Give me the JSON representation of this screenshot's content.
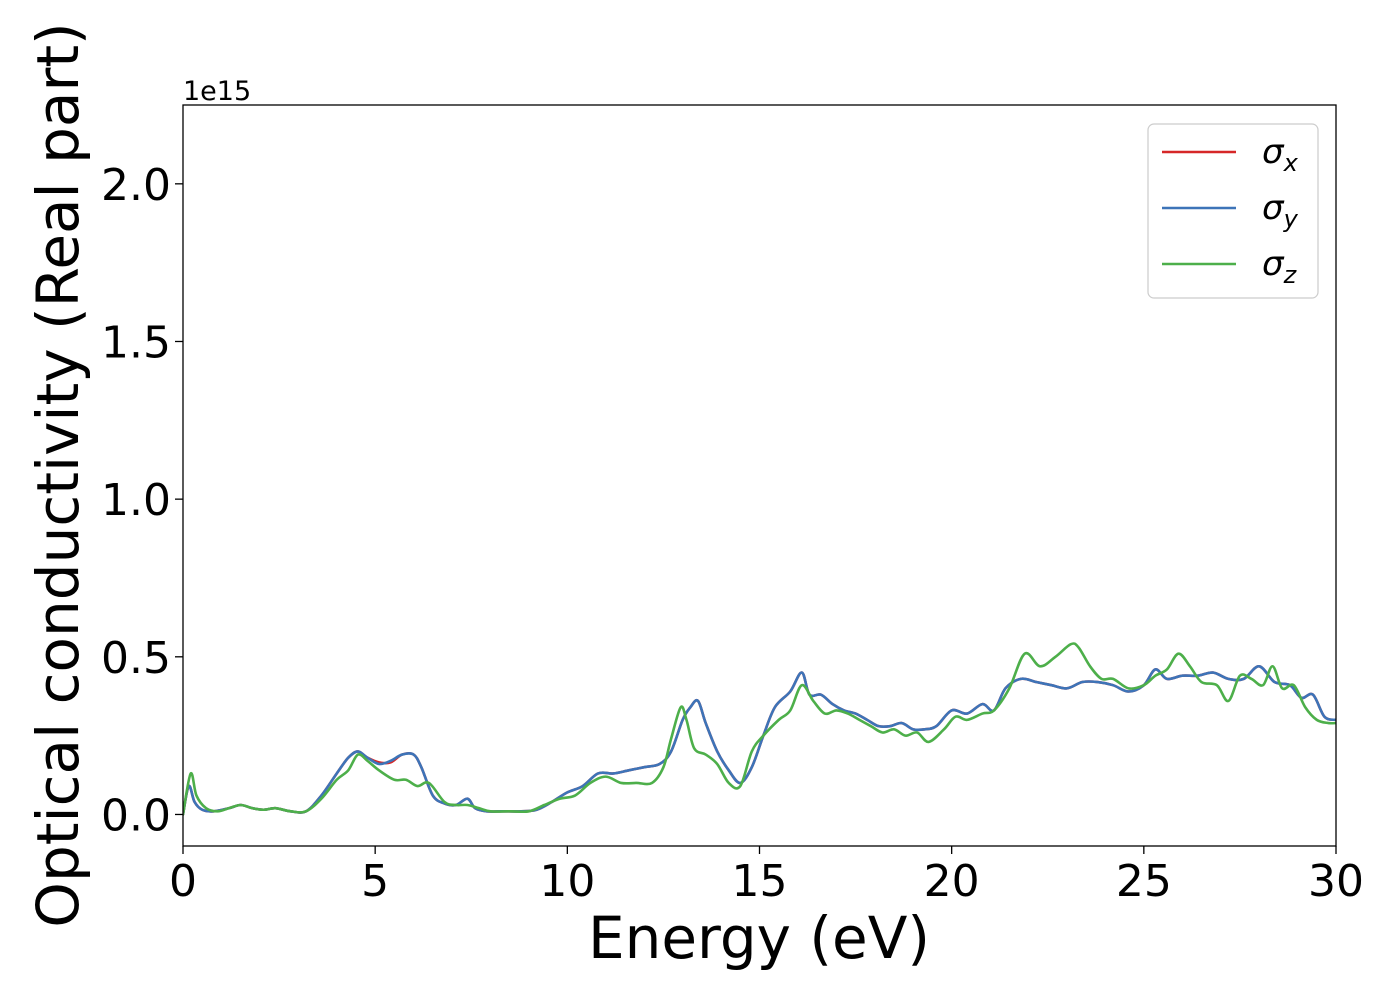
{
  "chart_data": {
    "type": "line",
    "title": "",
    "xlabel": "Energy (eV)",
    "ylabel": "Optical conductivity (Real part)",
    "y_offset_label": "1e15",
    "xlim": [
      0,
      30
    ],
    "ylim": [
      -0.1,
      2.25
    ],
    "xticks": [
      0,
      5,
      10,
      15,
      20,
      25,
      30
    ],
    "xtick_labels": [
      "0",
      "5",
      "10",
      "15",
      "20",
      "25",
      "30"
    ],
    "yticks": [
      0.0,
      0.5,
      1.0,
      1.5,
      2.0
    ],
    "ytick_labels": [
      "0.0",
      "0.5",
      "1.0",
      "1.5",
      "2.0"
    ],
    "grid": false,
    "legend": "top-right",
    "series": [
      {
        "name": "σ",
        "subscript": "x",
        "color": "#d62728",
        "x": [
          0,
          0.15,
          0.3,
          0.5,
          0.8,
          1.2,
          1.5,
          1.8,
          2.1,
          2.4,
          2.8,
          3.2,
          3.6,
          4.0,
          4.3,
          4.55,
          4.8,
          5.1,
          5.4,
          5.7,
          6.0,
          6.2,
          6.5,
          6.8,
          7.1,
          7.4,
          7.6,
          7.9,
          8.3,
          8.8,
          9.2,
          9.6,
          10.0,
          10.4,
          10.8,
          11.2,
          11.6,
          12.0,
          12.4,
          12.7,
          13.0,
          13.2,
          13.4,
          13.6,
          13.9,
          14.2,
          14.5,
          14.8,
          15.1,
          15.4,
          15.8,
          16.1,
          16.3,
          16.6,
          16.9,
          17.2,
          17.5,
          17.8,
          18.1,
          18.4,
          18.7,
          19.0,
          19.3,
          19.6,
          20.0,
          20.4,
          20.8,
          21.1,
          21.4,
          21.8,
          22.2,
          22.6,
          23.0,
          23.4,
          23.8,
          24.2,
          24.6,
          25.0,
          25.3,
          25.6,
          26.0,
          26.4,
          26.8,
          27.2,
          27.6,
          28.0,
          28.4,
          28.8,
          29.1,
          29.4,
          29.7,
          30.0
        ],
        "values": [
          0.0,
          0.09,
          0.04,
          0.015,
          0.01,
          0.02,
          0.03,
          0.02,
          0.015,
          0.02,
          0.01,
          0.01,
          0.06,
          0.13,
          0.18,
          0.2,
          0.18,
          0.165,
          0.165,
          0.19,
          0.19,
          0.15,
          0.06,
          0.035,
          0.03,
          0.05,
          0.02,
          0.01,
          0.01,
          0.01,
          0.015,
          0.04,
          0.07,
          0.09,
          0.13,
          0.13,
          0.14,
          0.15,
          0.16,
          0.2,
          0.3,
          0.34,
          0.36,
          0.29,
          0.2,
          0.14,
          0.1,
          0.15,
          0.25,
          0.34,
          0.39,
          0.45,
          0.38,
          0.38,
          0.35,
          0.33,
          0.32,
          0.3,
          0.28,
          0.28,
          0.29,
          0.27,
          0.27,
          0.28,
          0.33,
          0.32,
          0.35,
          0.33,
          0.4,
          0.43,
          0.42,
          0.41,
          0.4,
          0.42,
          0.42,
          0.41,
          0.39,
          0.41,
          0.46,
          0.43,
          0.44,
          0.44,
          0.45,
          0.43,
          0.43,
          0.47,
          0.42,
          0.41,
          0.37,
          0.38,
          0.31,
          0.3
        ]
      },
      {
        "name": "σ",
        "subscript": "y",
        "color": "#3d74b8",
        "x": [
          0,
          0.15,
          0.3,
          0.5,
          0.8,
          1.2,
          1.5,
          1.8,
          2.1,
          2.4,
          2.8,
          3.2,
          3.6,
          4.0,
          4.3,
          4.55,
          4.8,
          5.1,
          5.4,
          5.7,
          6.0,
          6.2,
          6.5,
          6.8,
          7.1,
          7.4,
          7.6,
          7.9,
          8.3,
          8.8,
          9.2,
          9.6,
          10.0,
          10.4,
          10.8,
          11.2,
          11.6,
          12.0,
          12.4,
          12.7,
          13.0,
          13.2,
          13.4,
          13.6,
          13.9,
          14.2,
          14.5,
          14.8,
          15.1,
          15.4,
          15.8,
          16.1,
          16.3,
          16.6,
          16.9,
          17.2,
          17.5,
          17.8,
          18.1,
          18.4,
          18.7,
          19.0,
          19.3,
          19.6,
          20.0,
          20.4,
          20.8,
          21.1,
          21.4,
          21.8,
          22.2,
          22.6,
          23.0,
          23.4,
          23.8,
          24.2,
          24.6,
          25.0,
          25.3,
          25.6,
          26.0,
          26.4,
          26.8,
          27.2,
          27.6,
          28.0,
          28.4,
          28.8,
          29.1,
          29.4,
          29.7,
          30.0
        ],
        "values": [
          0.0,
          0.09,
          0.04,
          0.015,
          0.01,
          0.02,
          0.03,
          0.02,
          0.015,
          0.02,
          0.01,
          0.01,
          0.06,
          0.13,
          0.18,
          0.2,
          0.18,
          0.16,
          0.17,
          0.19,
          0.19,
          0.15,
          0.06,
          0.035,
          0.03,
          0.05,
          0.02,
          0.01,
          0.01,
          0.01,
          0.015,
          0.04,
          0.07,
          0.09,
          0.13,
          0.13,
          0.14,
          0.15,
          0.16,
          0.2,
          0.3,
          0.34,
          0.36,
          0.29,
          0.2,
          0.14,
          0.1,
          0.15,
          0.25,
          0.34,
          0.39,
          0.45,
          0.38,
          0.38,
          0.35,
          0.33,
          0.32,
          0.3,
          0.28,
          0.28,
          0.29,
          0.27,
          0.27,
          0.28,
          0.33,
          0.32,
          0.35,
          0.33,
          0.4,
          0.43,
          0.42,
          0.41,
          0.4,
          0.42,
          0.42,
          0.41,
          0.39,
          0.41,
          0.46,
          0.43,
          0.44,
          0.44,
          0.45,
          0.43,
          0.43,
          0.47,
          0.42,
          0.41,
          0.37,
          0.38,
          0.31,
          0.3
        ]
      },
      {
        "name": "σ",
        "subscript": "z",
        "color": "#4daf4a",
        "x": [
          0,
          0.2,
          0.35,
          0.6,
          0.9,
          1.2,
          1.5,
          1.8,
          2.1,
          2.4,
          2.8,
          3.2,
          3.6,
          4.0,
          4.3,
          4.55,
          4.8,
          5.1,
          5.5,
          5.8,
          6.1,
          6.4,
          6.8,
          7.1,
          7.4,
          7.7,
          8.0,
          8.5,
          9.0,
          9.4,
          9.8,
          10.2,
          10.6,
          11.0,
          11.4,
          11.8,
          12.2,
          12.5,
          12.7,
          12.95,
          13.1,
          13.3,
          13.6,
          13.9,
          14.2,
          14.5,
          14.8,
          15.1,
          15.5,
          15.8,
          16.1,
          16.4,
          16.7,
          17.0,
          17.3,
          17.6,
          17.9,
          18.2,
          18.5,
          18.8,
          19.1,
          19.4,
          19.8,
          20.1,
          20.4,
          20.8,
          21.1,
          21.5,
          21.9,
          22.3,
          22.7,
          23.1,
          23.3,
          23.6,
          23.9,
          24.2,
          24.6,
          25.0,
          25.3,
          25.6,
          25.9,
          26.2,
          26.5,
          26.9,
          27.2,
          27.5,
          27.8,
          28.1,
          28.35,
          28.6,
          28.9,
          29.2,
          29.5,
          29.8,
          30.0
        ],
        "values": [
          0.0,
          0.13,
          0.06,
          0.02,
          0.01,
          0.02,
          0.03,
          0.02,
          0.015,
          0.02,
          0.01,
          0.01,
          0.05,
          0.11,
          0.14,
          0.19,
          0.17,
          0.14,
          0.11,
          0.11,
          0.09,
          0.1,
          0.04,
          0.03,
          0.03,
          0.02,
          0.01,
          0.01,
          0.01,
          0.03,
          0.05,
          0.06,
          0.1,
          0.12,
          0.1,
          0.1,
          0.1,
          0.15,
          0.24,
          0.34,
          0.3,
          0.21,
          0.19,
          0.16,
          0.1,
          0.09,
          0.2,
          0.25,
          0.3,
          0.33,
          0.41,
          0.36,
          0.32,
          0.33,
          0.32,
          0.3,
          0.28,
          0.26,
          0.27,
          0.25,
          0.26,
          0.23,
          0.27,
          0.31,
          0.3,
          0.32,
          0.33,
          0.4,
          0.51,
          0.47,
          0.5,
          0.54,
          0.53,
          0.47,
          0.43,
          0.43,
          0.4,
          0.41,
          0.44,
          0.46,
          0.51,
          0.47,
          0.42,
          0.41,
          0.36,
          0.44,
          0.43,
          0.41,
          0.47,
          0.4,
          0.41,
          0.34,
          0.3,
          0.29,
          0.29
        ]
      }
    ]
  }
}
